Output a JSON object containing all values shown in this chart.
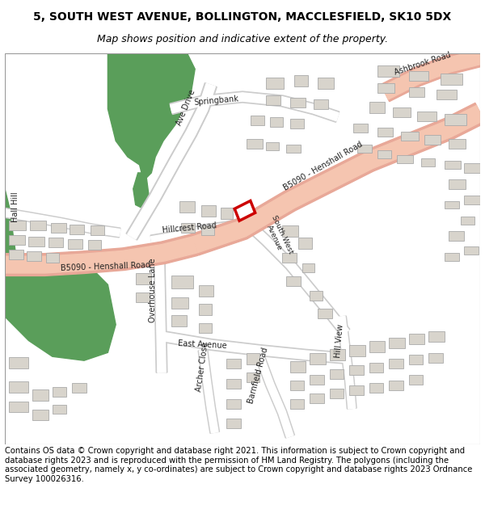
{
  "title_line1": "5, SOUTH WEST AVENUE, BOLLINGTON, MACCLESFIELD, SK10 5DX",
  "title_line2": "Map shows position and indicative extent of the property.",
  "footer_text": "Contains OS data © Crown copyright and database right 2021. This information is subject to Crown copyright and database rights 2023 and is reproduced with the permission of HM Land Registry. The polygons (including the associated geometry, namely x, y co-ordinates) are subject to Crown copyright and database rights 2023 Ordnance Survey 100026316.",
  "bg_color": "#ffffff",
  "map_bg": "#ffffff",
  "road_main_color": "#f5c5b0",
  "road_main_outline": "#e8a898",
  "road_side_color": "#ffffff",
  "road_side_outline": "#cccccc",
  "green_color": "#5a9e5a",
  "building_fill": "#d8d4cc",
  "building_outline": "#aaaaaa",
  "highlight_outline": "#cc0000",
  "title_fontsize": 10,
  "subtitle_fontsize": 9,
  "footer_fontsize": 7.2
}
